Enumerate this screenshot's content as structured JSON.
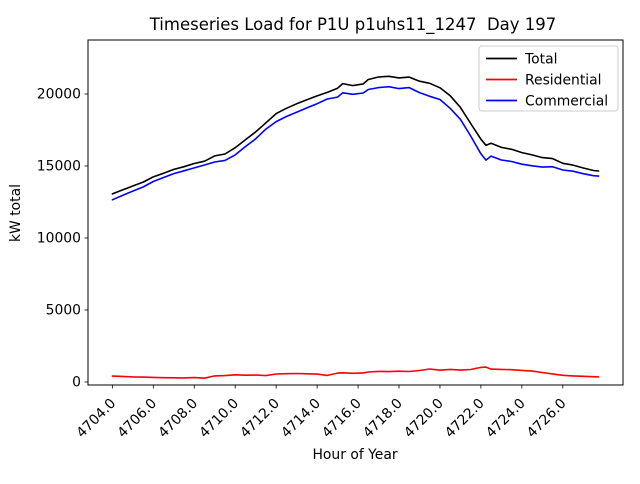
{
  "chart_data": {
    "type": "line",
    "title": "Timeseries Load for P1U p1uhs11_1247  Day 197",
    "xlabel": "Hour of Year",
    "ylabel": "kW total",
    "legend_position": "upper right",
    "grid": false,
    "xlim": [
      4702.81,
      4728.94
    ],
    "ylim": [
      -210,
      23750
    ],
    "x_tick_values": [
      4704,
      4706,
      4708,
      4710,
      4712,
      4714,
      4716,
      4718,
      4720,
      4722,
      4724,
      4726
    ],
    "x_tick_labels": [
      "4704.0",
      "4706.0",
      "4708.0",
      "4710.0",
      "4712.0",
      "4714.0",
      "4716.0",
      "4718.0",
      "4720.0",
      "4722.0",
      "4724.0",
      "4726.0"
    ],
    "y_tick_values": [
      0,
      5000,
      10000,
      15000,
      20000
    ],
    "y_tick_labels": [
      "0",
      "5000",
      "10000",
      "15000",
      "20000"
    ],
    "x": [
      4704.0,
      4704.5,
      4705.0,
      4705.5,
      4706.0,
      4706.5,
      4707.0,
      4707.5,
      4708.0,
      4708.5,
      4709.0,
      4709.5,
      4710.0,
      4710.5,
      4711.0,
      4711.5,
      4712.0,
      4712.5,
      4713.0,
      4713.5,
      4714.0,
      4714.5,
      4715.0,
      4715.25,
      4715.75,
      4716.25,
      4716.5,
      4717.0,
      4717.5,
      4718.0,
      4718.5,
      4719.0,
      4719.5,
      4720.0,
      4720.5,
      4721.0,
      4721.5,
      4722.0,
      4722.25,
      4722.5,
      4723.0,
      4723.5,
      4724.0,
      4724.5,
      4725.0,
      4725.5,
      4726.0,
      4726.5,
      4727.0,
      4727.5,
      4727.75
    ],
    "series": [
      {
        "name": "Total",
        "color": "#000000",
        "values": [
          13060,
          13340,
          13610,
          13880,
          14240,
          14500,
          14760,
          14950,
          15170,
          15330,
          15700,
          15830,
          16270,
          16820,
          17370,
          18000,
          18640,
          19010,
          19320,
          19600,
          19870,
          20110,
          20400,
          20720,
          20580,
          20700,
          21010,
          21180,
          21230,
          21120,
          21170,
          20890,
          20740,
          20430,
          19880,
          19070,
          17950,
          16860,
          16440,
          16580,
          16290,
          16160,
          15930,
          15770,
          15580,
          15510,
          15190,
          15060,
          14860,
          14690,
          14650
        ]
      },
      {
        "name": "Residential",
        "color": "#ff0000",
        "values": [
          410,
          385,
          355,
          340,
          315,
          300,
          290,
          285,
          305,
          260,
          420,
          445,
          500,
          470,
          485,
          440,
          555,
          575,
          590,
          565,
          545,
          455,
          615,
          640,
          600,
          630,
          695,
          735,
          720,
          745,
          725,
          795,
          900,
          815,
          870,
          825,
          865,
          1010,
          1030,
          895,
          875,
          850,
          805,
          755,
          655,
          560,
          465,
          425,
          395,
          365,
          350
        ]
      },
      {
        "name": "Commercial",
        "color": "#0000ff",
        "values": [
          12650,
          12955,
          13255,
          13540,
          13925,
          14200,
          14470,
          14665,
          14865,
          15070,
          15280,
          15385,
          15770,
          16350,
          16885,
          17560,
          18085,
          18435,
          18730,
          19035,
          19325,
          19655,
          19785,
          20080,
          19980,
          20070,
          20315,
          20445,
          20510,
          20375,
          20445,
          20095,
          19840,
          19615,
          19010,
          18245,
          17085,
          15850,
          15410,
          15685,
          15415,
          15310,
          15125,
          15015,
          14925,
          14950,
          14725,
          14635,
          14465,
          14325,
          14300
        ]
      }
    ]
  }
}
